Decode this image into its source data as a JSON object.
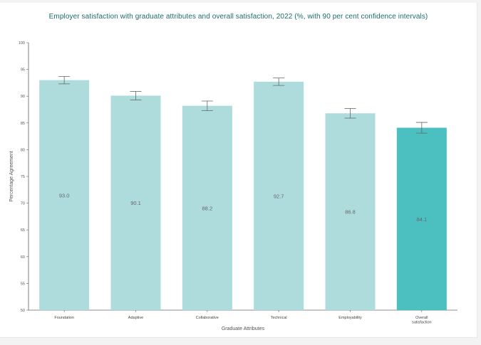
{
  "chart_data": {
    "type": "bar",
    "title": "Employer satisfaction with graduate attributes and overall satisfaction, 2022 (%, with 90 per cent confidence intervals)",
    "xlabel": "Graduate Attributes",
    "ylabel": "Percentage Agreement",
    "ylim": [
      50,
      100
    ],
    "yticks": [
      50,
      55,
      60,
      65,
      70,
      75,
      80,
      85,
      90,
      95,
      100
    ],
    "categories": [
      [
        "Foundation"
      ],
      [
        "Adaptive"
      ],
      [
        "Collaborative"
      ],
      [
        "Technical"
      ],
      [
        "Employability"
      ],
      [
        "Overall",
        "satisfaction"
      ]
    ],
    "values": [
      93.0,
      90.1,
      88.2,
      92.7,
      86.8,
      84.1
    ],
    "value_labels": [
      "93.0",
      "90.1",
      "88.2",
      "92.7",
      "86.8",
      "84.1"
    ],
    "ci_low": [
      92.3,
      89.3,
      87.3,
      92.0,
      85.9,
      83.1
    ],
    "ci_high": [
      93.7,
      90.9,
      89.1,
      93.4,
      87.7,
      85.1
    ],
    "colors": [
      "#aedcdd",
      "#aedcdd",
      "#aedcdd",
      "#aedcdd",
      "#aedcdd",
      "#4cbfc0"
    ],
    "grid": false
  }
}
